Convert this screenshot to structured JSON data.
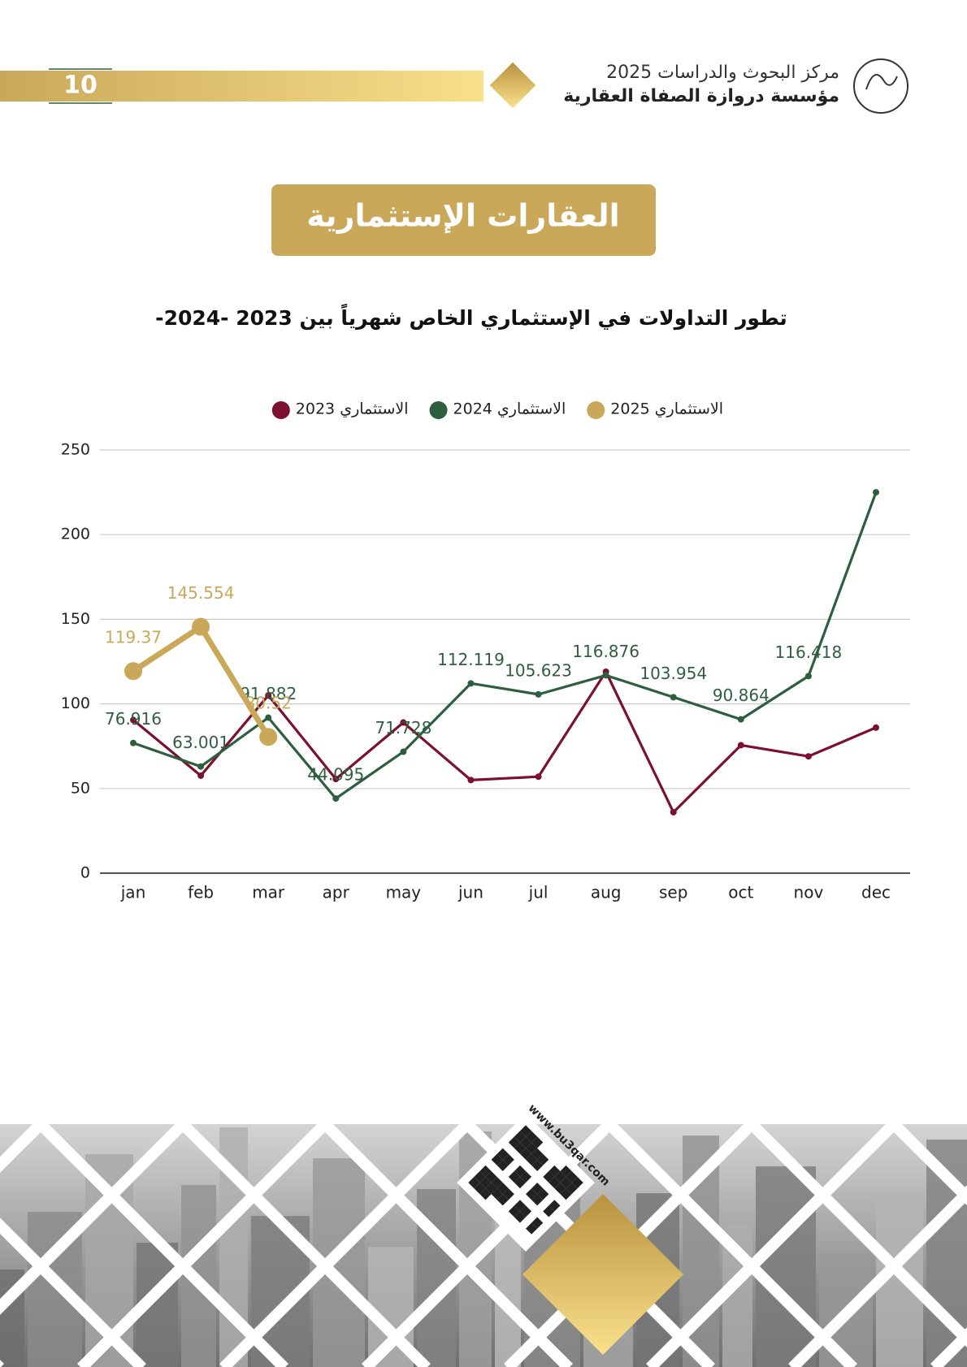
{
  "header": {
    "line1": "مركز البحوث والدراسات 2025",
    "line2": "مؤسسة دروازة الصفاة العقارية",
    "page_number": "10"
  },
  "section_title": "العقارات الإستثمارية",
  "footer": {
    "url": "www.bu3qar.com"
  },
  "chart_data": {
    "type": "line",
    "title": "تطور التداولات في الإستثماري  الخاص شهرياً بين 2023 -2024-",
    "categories": [
      "jan",
      "feb",
      "mar",
      "apr",
      "may",
      "jun",
      "jul",
      "aug",
      "sep",
      "oct",
      "nov",
      "dec"
    ],
    "ylim": [
      0,
      250
    ],
    "yticks": [
      0,
      50,
      100,
      150,
      200,
      250
    ],
    "grid": true,
    "legend": "top",
    "series": [
      {
        "name": "الاستثماري 2023",
        "color": "#7b1030",
        "values": [
          90.5,
          57.6,
          105,
          55.6,
          89,
          55,
          57,
          119,
          36,
          75.6,
          69,
          86
        ]
      },
      {
        "name": "الاستثماري 2024",
        "color": "#2e5e3e",
        "values": [
          76.916,
          63.001,
          91.882,
          44.095,
          71.728,
          112.119,
          105.623,
          116.876,
          103.954,
          90.864,
          116.418,
          225
        ],
        "value_labels": [
          "76.916",
          "63.001",
          "91.882",
          "44.095",
          "71.728",
          "112.119",
          "105.623",
          "116.876",
          "103.954",
          "90.864",
          "116.418",
          null
        ]
      },
      {
        "name": "الاستثماري 2025",
        "color": "#c9a85a",
        "values": [
          119.37,
          145.554,
          80.52,
          null,
          null,
          null,
          null,
          null,
          null,
          null,
          null,
          null
        ],
        "value_labels": [
          "119.37",
          "145.554",
          "80.52",
          null,
          null,
          null,
          null,
          null,
          null,
          null,
          null,
          null
        ]
      }
    ]
  }
}
